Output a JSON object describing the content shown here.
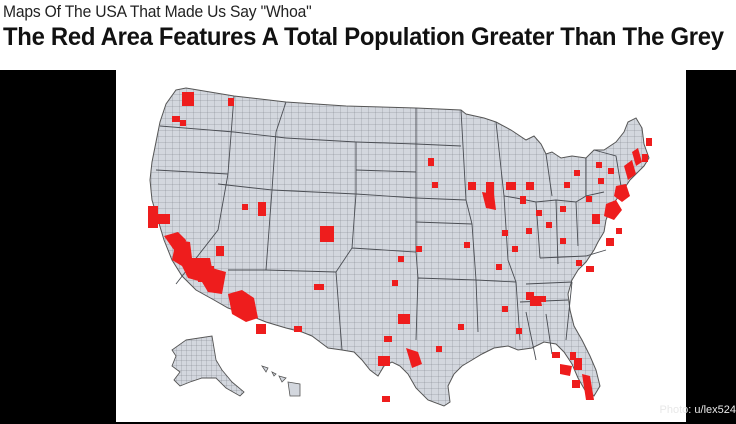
{
  "article": {
    "kicker": "Maps Of The USA That Made Us Say \"Whoa\"",
    "headline": "The Red Area Features A Total Population Greater Than The Grey"
  },
  "image": {
    "credit": "Photo: u/lex524",
    "colors": {
      "grey_area": "#d3d7de",
      "border": "#6d7077",
      "red_area": "#ee1d1d",
      "background": "#000000"
    }
  }
}
